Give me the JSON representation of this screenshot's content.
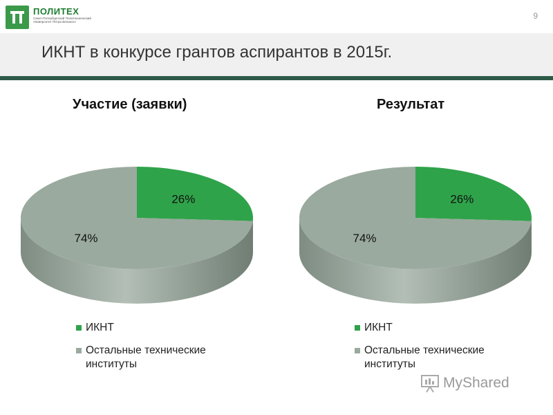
{
  "logo": {
    "name": "ПОЛИТЕХ",
    "subtitle": "Санкт-Петербургский Политехнический Университет Петра Великого"
  },
  "page_number": "9",
  "slide_title": "ИКНТ в конкурсе грантов аспирантов в 2015г.",
  "watermark": {
    "text": "MyShared"
  },
  "colors": {
    "ikht": "#2fa34a",
    "others": "#9aaa9e",
    "others_side": "#7c8a80",
    "header_rule": "#2e5a48"
  },
  "chart_data": [
    {
      "type": "pie",
      "title": "Участие (заявки)",
      "categories": [
        "ИКНТ",
        "Остальные технические институты"
      ],
      "values": [
        26,
        74
      ],
      "data_labels": [
        "26%",
        "74%"
      ],
      "legend_position": "bottom",
      "style": "3d"
    },
    {
      "type": "pie",
      "title": "Результат",
      "categories": [
        "ИКНТ",
        "Остальные технические институты"
      ],
      "values": [
        26,
        74
      ],
      "data_labels": [
        "26%",
        "74%"
      ],
      "legend_position": "bottom",
      "style": "3d"
    }
  ]
}
